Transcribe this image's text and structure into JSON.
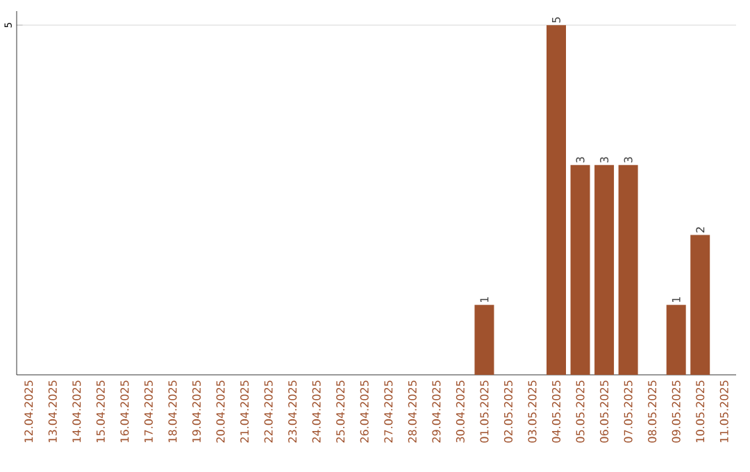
{
  "chart_data": {
    "type": "bar",
    "categories": [
      "12.04.2025",
      "13.04.2025",
      "14.04.2025",
      "15.04.2025",
      "16.04.2025",
      "17.04.2025",
      "18.04.2025",
      "19.04.2025",
      "20.04.2025",
      "21.04.2025",
      "22.04.2025",
      "23.04.2025",
      "24.04.2025",
      "25.04.2025",
      "26.04.2025",
      "27.04.2025",
      "28.04.2025",
      "29.04.2025",
      "30.04.2025",
      "01.05.2025",
      "02.05.2025",
      "03.05.2025",
      "04.05.2025",
      "05.05.2025",
      "06.05.2025",
      "07.05.2025",
      "08.05.2025",
      "09.05.2025",
      "10.05.2025",
      "11.05.2025"
    ],
    "values": [
      null,
      null,
      null,
      null,
      null,
      null,
      null,
      null,
      null,
      null,
      null,
      null,
      null,
      null,
      null,
      null,
      null,
      null,
      null,
      1,
      null,
      null,
      5,
      3,
      3,
      3,
      null,
      1,
      2,
      null
    ],
    "data_labels": true,
    "color": "#a0522d",
    "ylim": [
      0,
      5.2
    ],
    "yticks": [
      5
    ],
    "grid": "y"
  }
}
